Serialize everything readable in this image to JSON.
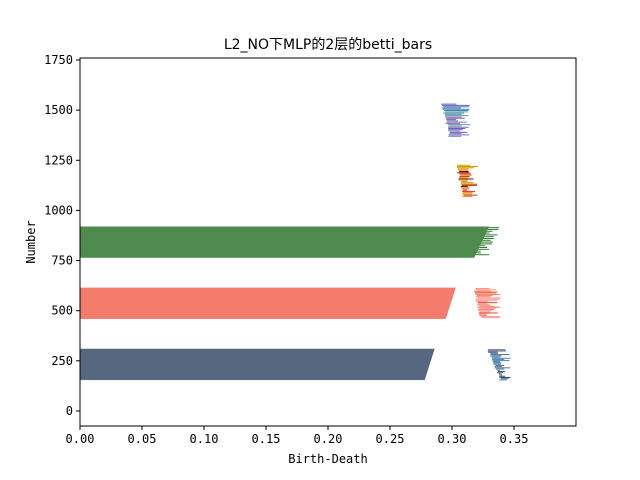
{
  "chart_data": {
    "type": "bar",
    "orientation": "horizontal",
    "title": "L2_NO下MLP的2层的betti_bars",
    "xlabel": "Birth-Death",
    "ylabel": "Number",
    "xlim": [
      0,
      0.4
    ],
    "ylim": [
      -75,
      1760
    ],
    "xticks": [
      0.0,
      0.05,
      0.1,
      0.15,
      0.2,
      0.25,
      0.3,
      0.35
    ],
    "xtick_labels": [
      "0.00",
      "0.05",
      "0.10",
      "0.15",
      "0.20",
      "0.25",
      "0.30",
      "0.35"
    ],
    "yticks": [
      0,
      250,
      500,
      750,
      1000,
      1250,
      1500,
      1750
    ],
    "ytick_labels": [
      "0",
      "250",
      "500",
      "750",
      "1000",
      "1250",
      "1500",
      "1750"
    ],
    "grid": false,
    "series": [
      {
        "color": "#57677f",
        "band": [
          155,
          310
        ],
        "x_at_bottom": 0.278,
        "x_at_top": 0.286
      },
      {
        "color": "#f47c6c",
        "band": [
          460,
          615
        ],
        "x_at_bottom": 0.295,
        "x_at_top": 0.303
      },
      {
        "color": "#4f8a4f",
        "band": [
          765,
          920
        ],
        "x_at_bottom": 0.318,
        "x_at_top": 0.33
      }
    ],
    "tail_clusters": [
      {
        "y_range": [
          155,
          305
        ],
        "x_start": [
          0.329,
          0.339
        ],
        "x_end": [
          0.336,
          0.348
        ],
        "colors": [
          "#57677f",
          "#4682b4",
          "#2f4f6f"
        ]
      },
      {
        "y_range": [
          465,
          610
        ],
        "x_start": [
          0.318,
          0.323
        ],
        "x_end": [
          0.328,
          0.34
        ],
        "colors": [
          "#f47c6c",
          "#e0443c",
          "#ff8c5a",
          "#ff9999"
        ]
      },
      {
        "y_range": [
          1070,
          1225
        ],
        "x_start": [
          0.304,
          0.309
        ],
        "x_end": [
          0.312,
          0.321
        ],
        "colors": [
          "#c8a400",
          "#d4342c",
          "#ff7f0e",
          "#8b0000"
        ]
      },
      {
        "y_range": [
          1370,
          1530
        ],
        "x_start": [
          0.292,
          0.298
        ],
        "x_end": [
          0.302,
          0.315
        ],
        "colors": [
          "#4682b4",
          "#5f9ea0",
          "#6a5acd",
          "#9467bd"
        ]
      }
    ]
  }
}
